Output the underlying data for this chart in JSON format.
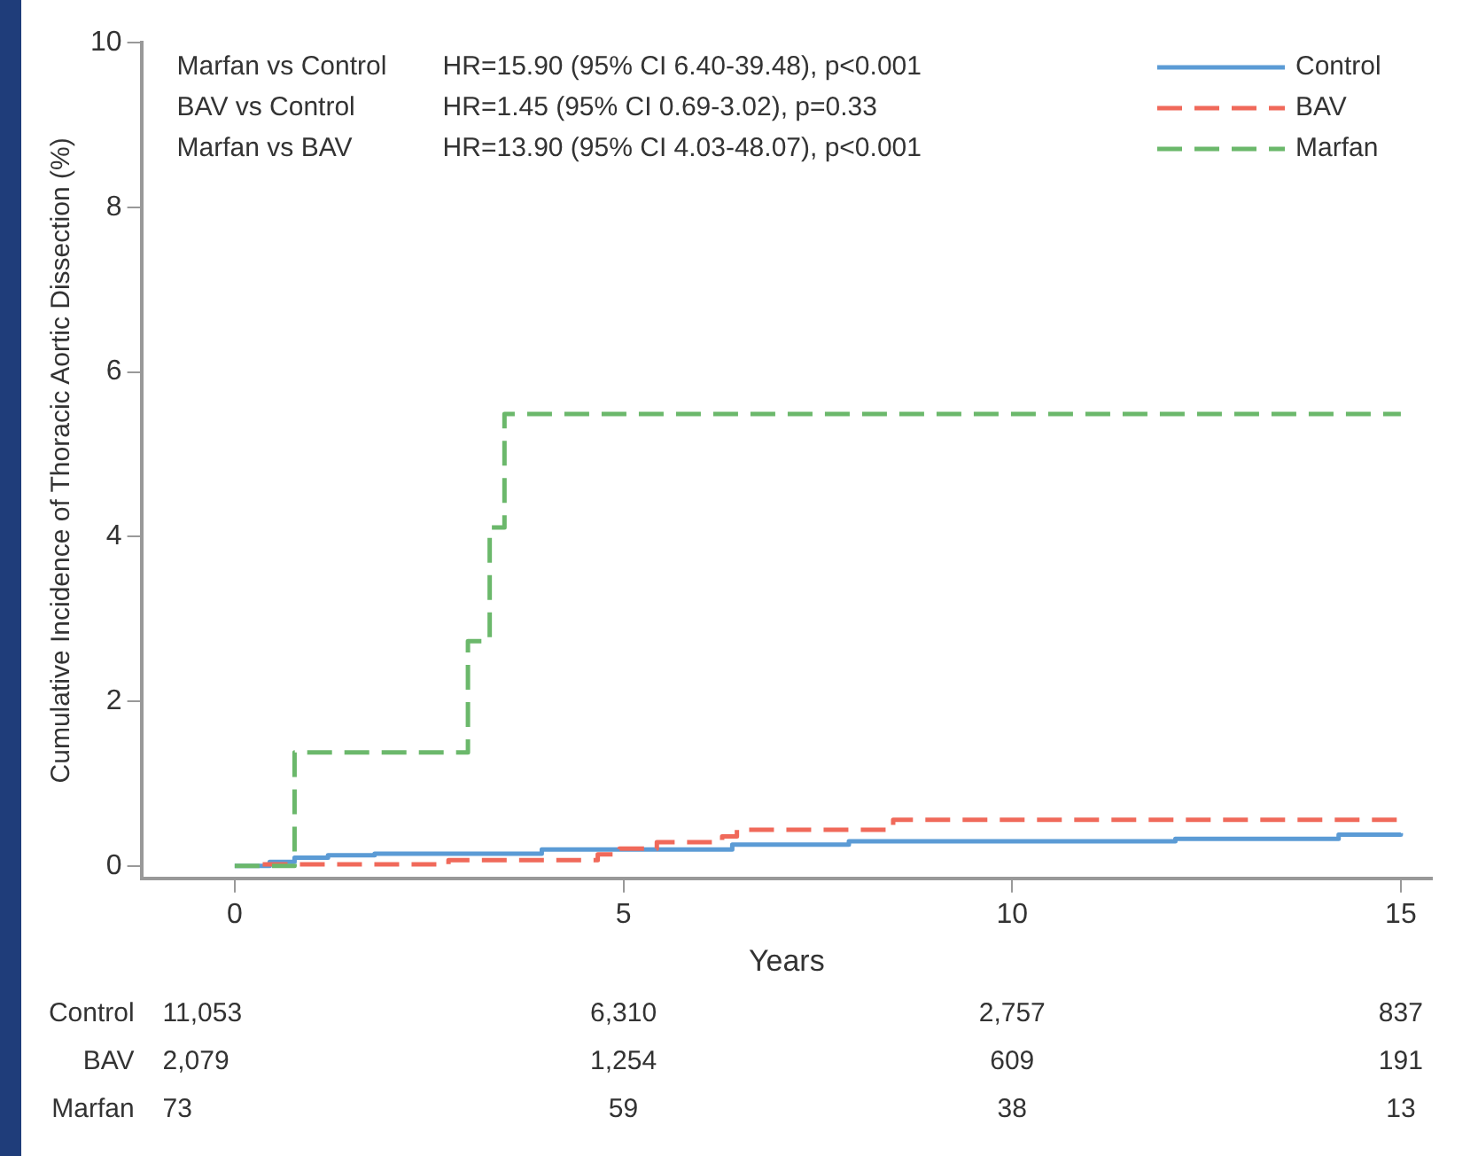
{
  "chart_data": {
    "type": "step",
    "xlabel": "Years",
    "ylabel": "Cumulative Incidence of Thoracic Aortic Dissection (%)",
    "xlim": [
      -1.2,
      15.4
    ],
    "ylim": [
      -0.15,
      10
    ],
    "xticks": [
      0,
      5,
      10,
      15
    ],
    "yticks": [
      0,
      2,
      4,
      6,
      8,
      10
    ],
    "grid": false,
    "legend": "top right",
    "series": [
      {
        "name": "Control",
        "color": "#5b9bd5",
        "line_style": "solid",
        "x": [
          0,
          0.45,
          0.77,
          1.2,
          1.8,
          3.95,
          6.4,
          7.9,
          12.1,
          14.2,
          15
        ],
        "values": [
          0,
          0.05,
          0.1,
          0.13,
          0.15,
          0.2,
          0.26,
          0.3,
          0.33,
          0.38,
          0.4
        ]
      },
      {
        "name": "BAV",
        "color": "#f0695a",
        "line_style": "dashed",
        "x": [
          0.36,
          2.75,
          4.67,
          4.95,
          5.43,
          6.27,
          6.46,
          8.47,
          15
        ],
        "values": [
          0.02,
          0.07,
          0.14,
          0.21,
          0.29,
          0.36,
          0.44,
          0.56,
          0.56
        ]
      },
      {
        "name": "Marfan",
        "color": "#6bb86b",
        "line_style": "dashed",
        "x": [
          0,
          0.77,
          3.0,
          3.28,
          3.47,
          15
        ],
        "values": [
          0,
          1.38,
          2.73,
          4.11,
          5.49,
          5.49
        ]
      }
    ],
    "annotations": [
      "Marfan vs Control",
      "HR=15.90 (95% CI 6.40-39.48), p<0.001",
      "BAV vs Control",
      "HR=1.45 (95% CI 0.69-3.02), p=0.33",
      "Marfan vs BAV",
      "HR=13.90 (95% CI 4.03-48.07), p<0.001",
      "Control",
      "11,053",
      "6,310",
      "2,757",
      "837",
      "BAV",
      "2,079",
      "1,254",
      "609",
      "191",
      "Marfan",
      "73",
      "59",
      "38",
      "13"
    ]
  }
}
